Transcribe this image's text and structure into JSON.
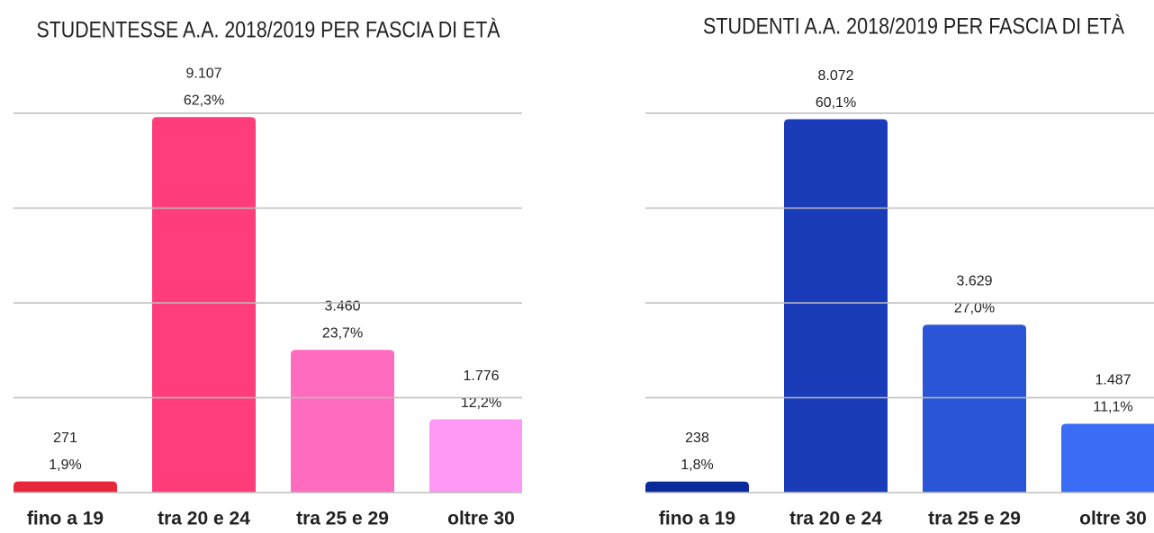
{
  "chart_data": [
    {
      "type": "bar",
      "title": "STUDENTESSE A.A. 2018/2019 PER FASCIA DI  ETÀ",
      "categories": [
        "fino a 19",
        "tra 20 e 24",
        "tra 25 e 29",
        "oltre 30"
      ],
      "values": [
        271,
        9107,
        3460,
        1776
      ],
      "value_labels": [
        "271",
        "9.107",
        "3.460",
        "1.776"
      ],
      "shares": [
        1.9,
        62.3,
        23.7,
        12.2
      ],
      "share_labels": [
        "1,9%",
        "62,3%",
        "23,7%",
        "12,2%"
      ],
      "colors": [
        "#e8283a",
        "#ff3d7a",
        "#ff6bbf",
        "#ff99f5"
      ],
      "ylim": [
        0,
        9200
      ],
      "yticks": [
        0,
        2300,
        4600,
        6900,
        9200
      ],
      "grid": true
    },
    {
      "type": "bar",
      "title": "STUDENTI A.A. 2018/2019 PER FASCIA DI  ETÀ",
      "categories": [
        "fino a 19",
        "tra 20 e 24",
        "tra 25 e 29",
        "oltre 30"
      ],
      "values": [
        238,
        8072,
        3629,
        1487
      ],
      "value_labels": [
        "238",
        "8.072",
        "3.629",
        "1.487"
      ],
      "shares": [
        1.8,
        60.1,
        27.0,
        11.1
      ],
      "share_labels": [
        "1,8%",
        "60,1%",
        "27,0%",
        "11,1%"
      ],
      "colors": [
        "#0a2a9a",
        "#1a3cb8",
        "#2a55d6",
        "#3a6cf5"
      ],
      "ylim": [
        0,
        8200
      ],
      "yticks": [
        0,
        2050,
        4100,
        6150,
        8200
      ],
      "grid": true
    }
  ]
}
